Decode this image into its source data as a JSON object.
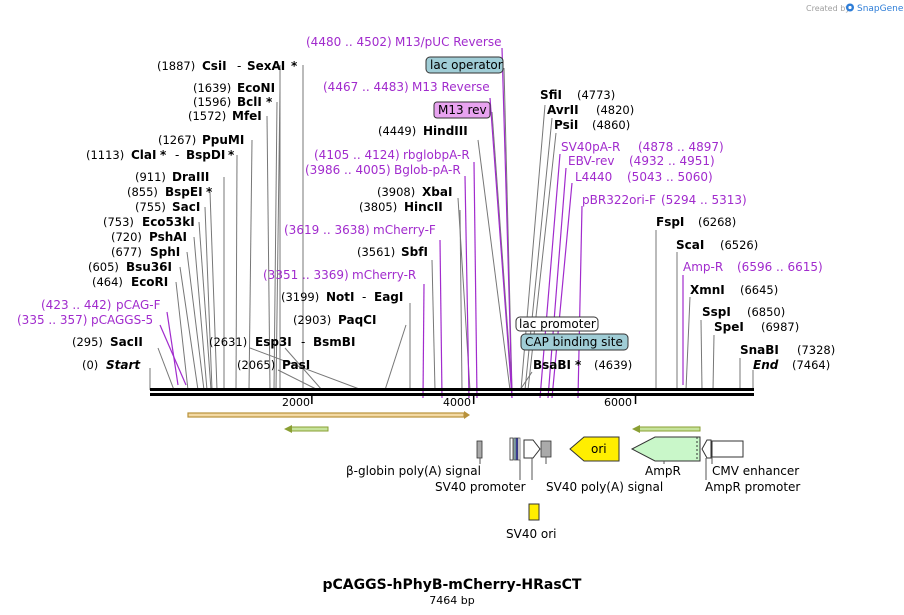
{
  "header": {
    "credit": "Created by",
    "brand": "SnapGene",
    "brand_color": "#2e7dd7",
    "logo_icon": "snapgene-logo-icon"
  },
  "plasmid": {
    "name": "pCAGGS-hPhyB-mCherry-HRasCT",
    "size_label": "7464 bp",
    "length": 7464
  },
  "ruler": {
    "ticks": [
      "2000",
      "4000",
      "6000"
    ],
    "tick_values": [
      2000,
      4000,
      6000
    ],
    "start_label": "Start",
    "start_pos": "(0)",
    "end_label": "End",
    "end_pos": "(7464)"
  },
  "colors": {
    "primer": "#a12bcd",
    "site": "#000000",
    "backbone": "#000000",
    "orf_arrow": "#8a9f33",
    "cds_bar": "#b8913a",
    "cds_bar_fill": "#f3d9a3",
    "ori_fill": "#ffee00",
    "ampr_fill": "#c9f7c9",
    "lac_operator_fill": "#a0cdd6",
    "cap_fill": "#a0cdd6",
    "m13rev_fill": "#e8a3f0",
    "sv40ori_fill": "#ffee00"
  },
  "left_sites": [
    {
      "pos": "(1887)",
      "name": "CsiI",
      "name2": "SexAI",
      "star2": "*",
      "bp": 1887
    },
    {
      "pos": "(1639)",
      "name": "EcoNI",
      "bp": 1639
    },
    {
      "pos": "(1596)",
      "name": "BclI",
      "star": "*",
      "bp": 1596
    },
    {
      "pos": "(1572)",
      "name": "MfeI",
      "bp": 1572
    },
    {
      "pos": "(1267)",
      "name": "PpuMI",
      "bp": 1267
    },
    {
      "pos": "(1113)",
      "name": "ClaI",
      "star": "*",
      "name2": "BspDI",
      "star2": "*",
      "bp": 1113
    },
    {
      "pos": "(911)",
      "name": "DraIII",
      "bp": 911
    },
    {
      "pos": "(855)",
      "name": "BspEI",
      "star": "*",
      "bp": 855
    },
    {
      "pos": "(755)",
      "name": "SacI",
      "bp": 755
    },
    {
      "pos": "(753)",
      "name": "Eco53kI",
      "bp": 753
    },
    {
      "pos": "(720)",
      "name": "PshAI",
      "bp": 720
    },
    {
      "pos": "(677)",
      "name": "SphI",
      "bp": 677
    },
    {
      "pos": "(605)",
      "name": "Bsu36I",
      "bp": 605
    },
    {
      "pos": "(464)",
      "name": "EcoRI",
      "bp": 464
    },
    {
      "pos": "(295)",
      "name": "SacII",
      "bp": 295
    },
    {
      "pos": "(2631)",
      "name": "Esp3I",
      "name2": "BsmBI",
      "bp": 2631
    },
    {
      "pos": "(2065)",
      "name": "PasI",
      "bp": 2065
    },
    {
      "pos": "(3199)",
      "name": "NotI",
      "name2": "EagI",
      "bp": 3199
    },
    {
      "pos": "(2903)",
      "name": "PaqCI",
      "bp": 2903
    },
    {
      "pos": "(3561)",
      "name": "SbfI",
      "bp": 3561
    },
    {
      "pos": "(3805)",
      "name": "HincII",
      "bp": 3805
    },
    {
      "pos": "(3908)",
      "name": "XbaI",
      "bp": 3908
    },
    {
      "pos": "(4449)",
      "name": "HindIII",
      "bp": 4449
    }
  ],
  "left_primers": [
    {
      "range": "(4480 .. 4502)",
      "name": "M13/pUC Reverse"
    },
    {
      "range": "(4467 .. 4483)",
      "name": "M13 Reverse"
    },
    {
      "range": "(4105 .. 4124)",
      "name": "rbglobpA-R"
    },
    {
      "range": "(3986 .. 4005)",
      "name": "Bglob-pA-R"
    },
    {
      "range": "(3619 .. 3638)",
      "name": "mCherry-F"
    },
    {
      "range": "(3351 .. 3369)",
      "name": "mCherry-R"
    },
    {
      "range": "(423 .. 442)",
      "name": "pCAG-F"
    },
    {
      "range": "(335 .. 357)",
      "name": "pCAGGS-5"
    }
  ],
  "boxed_labels": [
    {
      "name": "lac operator",
      "style": "lac"
    },
    {
      "name": "M13 rev",
      "style": "m13"
    },
    {
      "name": "lac promoter",
      "style": "plain"
    },
    {
      "name": "CAP binding site",
      "style": "cap"
    }
  ],
  "right_sites": [
    {
      "name": "SfiI",
      "pos": "(4773)",
      "bp": 4773
    },
    {
      "name": "AvrII",
      "pos": "(4820)",
      "bp": 4820
    },
    {
      "name": "PsiI",
      "pos": "(4860)",
      "bp": 4860
    },
    {
      "name": "FspI",
      "pos": "(6268)",
      "bp": 6268
    },
    {
      "name": "ScaI",
      "pos": "(6526)",
      "bp": 6526
    },
    {
      "name": "XmnI",
      "pos": "(6645)",
      "bp": 6645
    },
    {
      "name": "SspI",
      "pos": "(6850)",
      "bp": 6850
    },
    {
      "name": "SpeI",
      "pos": "(6987)",
      "bp": 6987
    },
    {
      "name": "SnaBI",
      "pos": "(7328)",
      "bp": 7328
    },
    {
      "name": "BsaBI",
      "star": "*",
      "pos": "(4639)",
      "bp": 4639
    }
  ],
  "right_primers": [
    {
      "name": "SV40pA-R",
      "range": "(4878 .. 4897)"
    },
    {
      "name": "EBV-rev",
      "range": "(4932 .. 4951)"
    },
    {
      "name": "L4440",
      "range": "(5043 .. 5060)"
    },
    {
      "name": "pBR322ori-F",
      "range": "(5294 .. 5313)"
    },
    {
      "name": "Amp-R",
      "range": "(6596 .. 6615)"
    }
  ],
  "features": [
    {
      "name": "β-globin poly(A) signal"
    },
    {
      "name": "SV40 promoter"
    },
    {
      "name": "SV40 poly(A) signal"
    },
    {
      "name": "ori"
    },
    {
      "name": "AmpR"
    },
    {
      "name": "CMV enhancer"
    },
    {
      "name": "AmpR promoter"
    },
    {
      "name": "SV40 ori"
    }
  ]
}
